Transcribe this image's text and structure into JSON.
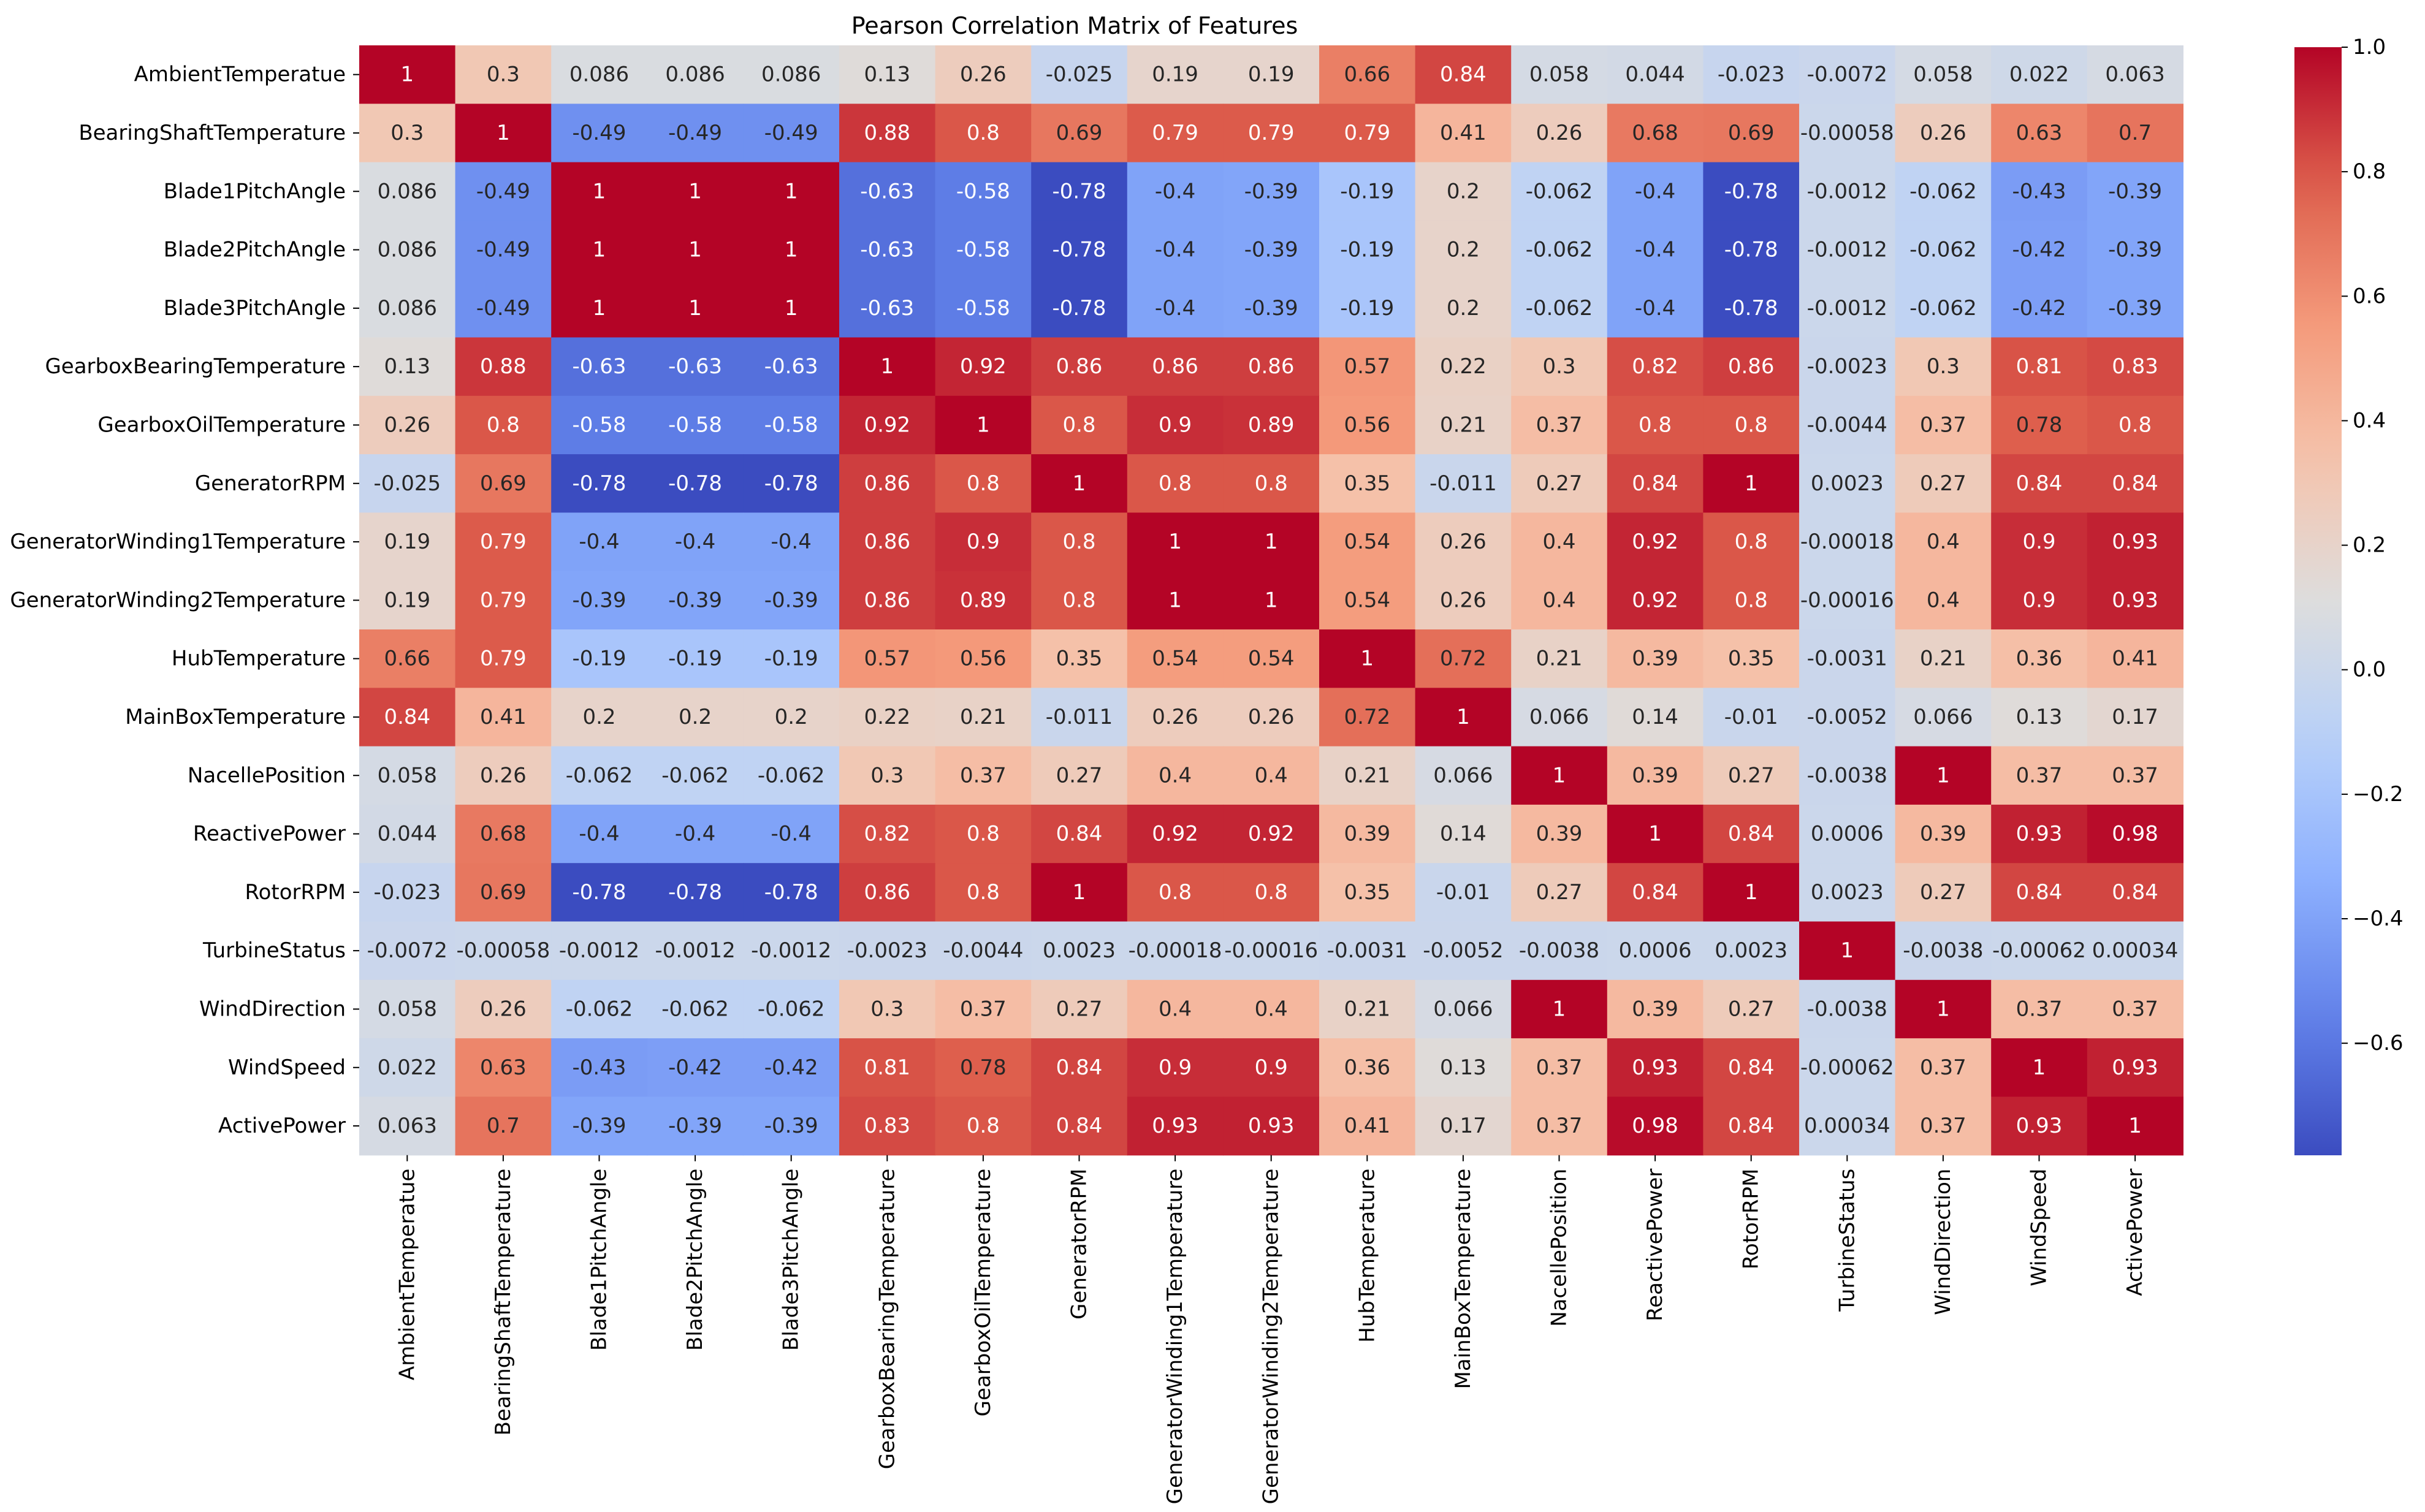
{
  "chart_data": {
    "type": "heatmap",
    "title": "Pearson Correlation Matrix of Features",
    "labels": [
      "AmbientTemperatue",
      "BearingShaftTemperature",
      "Blade1PitchAngle",
      "Blade2PitchAngle",
      "Blade3PitchAngle",
      "GearboxBearingTemperature",
      "GearboxOilTemperature",
      "GeneratorRPM",
      "GeneratorWinding1Temperature",
      "GeneratorWinding2Temperature",
      "HubTemperature",
      "MainBoxTemperature",
      "NacellePosition",
      "ReactivePower",
      "RotorRPM",
      "TurbineStatus",
      "WindDirection",
      "WindSpeed",
      "ActivePower"
    ],
    "values": [
      [
        1,
        0.3,
        0.086,
        0.086,
        0.086,
        0.13,
        0.26,
        -0.025,
        0.19,
        0.19,
        0.66,
        0.84,
        0.058,
        0.044,
        -0.023,
        -0.0072,
        0.058,
        0.022,
        0.063
      ],
      [
        0.3,
        1,
        -0.49,
        -0.49,
        -0.49,
        0.88,
        0.8,
        0.69,
        0.79,
        0.79,
        0.79,
        0.41,
        0.26,
        0.68,
        0.69,
        -0.00058,
        0.26,
        0.63,
        0.7
      ],
      [
        0.086,
        -0.49,
        1,
        1,
        1,
        -0.63,
        -0.58,
        -0.78,
        -0.4,
        -0.39,
        -0.19,
        0.2,
        -0.062,
        -0.4,
        -0.78,
        -0.0012,
        -0.062,
        -0.43,
        -0.39
      ],
      [
        0.086,
        -0.49,
        1,
        1,
        1,
        -0.63,
        -0.58,
        -0.78,
        -0.4,
        -0.39,
        -0.19,
        0.2,
        -0.062,
        -0.4,
        -0.78,
        -0.0012,
        -0.062,
        -0.42,
        -0.39
      ],
      [
        0.086,
        -0.49,
        1,
        1,
        1,
        -0.63,
        -0.58,
        -0.78,
        -0.4,
        -0.39,
        -0.19,
        0.2,
        -0.062,
        -0.4,
        -0.78,
        -0.0012,
        -0.062,
        -0.42,
        -0.39
      ],
      [
        0.13,
        0.88,
        -0.63,
        -0.63,
        -0.63,
        1,
        0.92,
        0.86,
        0.86,
        0.86,
        0.57,
        0.22,
        0.3,
        0.82,
        0.86,
        -0.0023,
        0.3,
        0.81,
        0.83
      ],
      [
        0.26,
        0.8,
        -0.58,
        -0.58,
        -0.58,
        0.92,
        1,
        0.8,
        0.9,
        0.89,
        0.56,
        0.21,
        0.37,
        0.8,
        0.8,
        -0.0044,
        0.37,
        0.78,
        0.8
      ],
      [
        -0.025,
        0.69,
        -0.78,
        -0.78,
        -0.78,
        0.86,
        0.8,
        1,
        0.8,
        0.8,
        0.35,
        -0.011,
        0.27,
        0.84,
        1,
        0.0023,
        0.27,
        0.84,
        0.84
      ],
      [
        0.19,
        0.79,
        -0.4,
        -0.4,
        -0.4,
        0.86,
        0.9,
        0.8,
        1,
        1,
        0.54,
        0.26,
        0.4,
        0.92,
        0.8,
        -0.00018,
        0.4,
        0.9,
        0.93
      ],
      [
        0.19,
        0.79,
        -0.39,
        -0.39,
        -0.39,
        0.86,
        0.89,
        0.8,
        1,
        1,
        0.54,
        0.26,
        0.4,
        0.92,
        0.8,
        -0.00016,
        0.4,
        0.9,
        0.93
      ],
      [
        0.66,
        0.79,
        -0.19,
        -0.19,
        -0.19,
        0.57,
        0.56,
        0.35,
        0.54,
        0.54,
        1,
        0.72,
        0.21,
        0.39,
        0.35,
        -0.0031,
        0.21,
        0.36,
        0.41
      ],
      [
        0.84,
        0.41,
        0.2,
        0.2,
        0.2,
        0.22,
        0.21,
        -0.011,
        0.26,
        0.26,
        0.72,
        1,
        0.066,
        0.14,
        -0.01,
        -0.0052,
        0.066,
        0.13,
        0.17
      ],
      [
        0.058,
        0.26,
        -0.062,
        -0.062,
        -0.062,
        0.3,
        0.37,
        0.27,
        0.4,
        0.4,
        0.21,
        0.066,
        1,
        0.39,
        0.27,
        -0.0038,
        1,
        0.37,
        0.37
      ],
      [
        0.044,
        0.68,
        -0.4,
        -0.4,
        -0.4,
        0.82,
        0.8,
        0.84,
        0.92,
        0.92,
        0.39,
        0.14,
        0.39,
        1,
        0.84,
        0.0006,
        0.39,
        0.93,
        0.98
      ],
      [
        -0.023,
        0.69,
        -0.78,
        -0.78,
        -0.78,
        0.86,
        0.8,
        1,
        0.8,
        0.8,
        0.35,
        -0.01,
        0.27,
        0.84,
        1,
        0.0023,
        0.27,
        0.84,
        0.84
      ],
      [
        -0.0072,
        -0.00058,
        -0.0012,
        -0.0012,
        -0.0012,
        -0.0023,
        -0.0044,
        0.0023,
        -0.00018,
        -0.00016,
        -0.0031,
        -0.0052,
        -0.0038,
        0.0006,
        0.0023,
        1,
        -0.0038,
        -0.00062,
        0.00034
      ],
      [
        0.058,
        0.26,
        -0.062,
        -0.062,
        -0.062,
        0.3,
        0.37,
        0.27,
        0.4,
        0.4,
        0.21,
        0.066,
        1,
        0.39,
        0.27,
        -0.0038,
        1,
        0.37,
        0.37
      ],
      [
        0.022,
        0.63,
        -0.43,
        -0.42,
        -0.42,
        0.81,
        0.78,
        0.84,
        0.9,
        0.9,
        0.36,
        0.13,
        0.37,
        0.93,
        0.84,
        -0.00062,
        0.37,
        1,
        0.93
      ],
      [
        0.063,
        0.7,
        -0.39,
        -0.39,
        -0.39,
        0.83,
        0.8,
        0.84,
        0.93,
        0.93,
        0.41,
        0.17,
        0.37,
        0.98,
        0.84,
        0.00034,
        0.37,
        0.93,
        1
      ]
    ],
    "colormap": "coolwarm",
    "vmin": -0.78,
    "vmax": 1.0,
    "colorbar_ticks": [
      1.0,
      0.8,
      0.6,
      0.4,
      0.2,
      0.0,
      -0.2,
      -0.4,
      -0.6
    ],
    "colorbar_tick_labels": [
      "1.0",
      "0.8",
      "0.6",
      "0.4",
      "0.2",
      "0.0",
      "−0.2",
      "−0.4",
      "−0.6"
    ],
    "annotations": true,
    "legend_position": "right"
  }
}
